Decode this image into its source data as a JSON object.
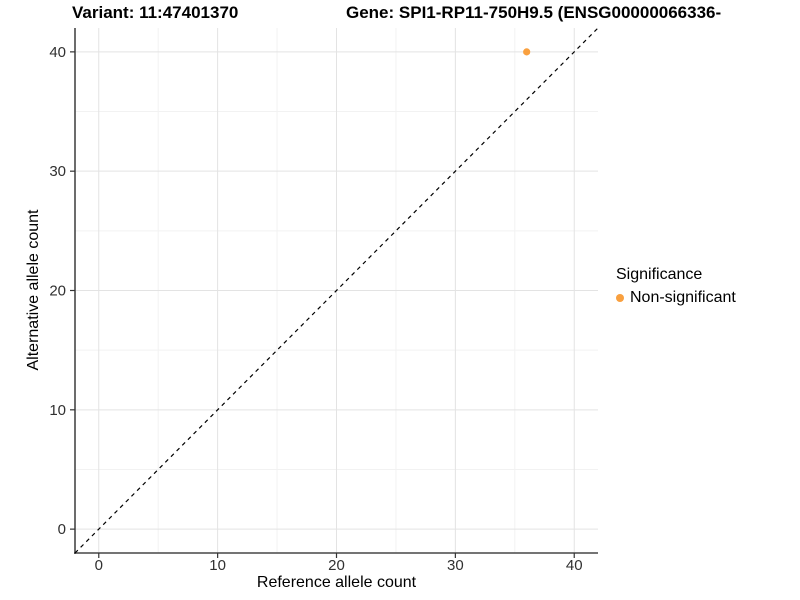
{
  "titles": {
    "variant": "Variant: 11:47401370",
    "gene": "Gene: SPI1-RP11-750H9.5 (ENSG00000066336-"
  },
  "chart_data": {
    "type": "scatter",
    "points": [
      {
        "x": 36,
        "y": 40,
        "series": "Non-significant"
      }
    ],
    "xlabel": "Reference allele count",
    "ylabel": "Alternative allele count",
    "xticks": [
      0,
      10,
      20,
      30,
      40
    ],
    "yticks": [
      0,
      10,
      20,
      30,
      40
    ],
    "minor_xticks": [
      5,
      15,
      25,
      35
    ],
    "minor_yticks": [
      5,
      15,
      25,
      35
    ],
    "xlim": [
      -2,
      42
    ],
    "ylim": [
      -2,
      42
    ],
    "grid": "major+minor",
    "identity_line": {
      "slope": 1,
      "intercept": 0,
      "style": "dashed"
    },
    "legend": {
      "title": "Significance",
      "position": "right",
      "items": [
        {
          "label": "Non-significant",
          "color": "#F9A03F"
        }
      ]
    }
  },
  "colors": {
    "point": "#F9A03F",
    "grid_major": "#e3e3e3",
    "grid_minor": "#f2f2f2",
    "axis_line": "#474747",
    "tick_mark": "#333333",
    "tick_label": "#303030",
    "identity_line": "#000000"
  }
}
